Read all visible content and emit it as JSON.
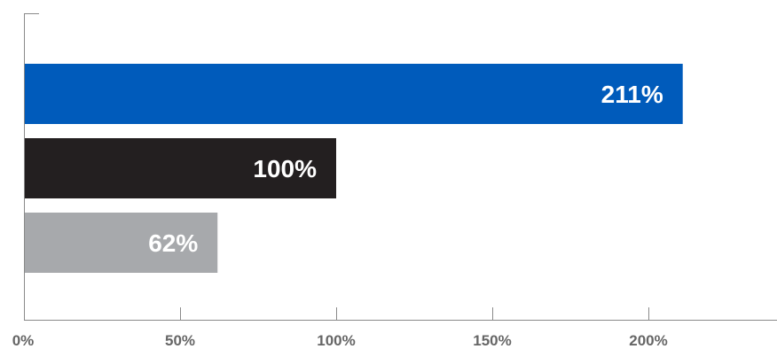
{
  "chart_data": {
    "type": "bar",
    "orientation": "horizontal",
    "values": [
      211,
      100,
      62
    ],
    "value_labels": [
      "211%",
      "100%",
      "62%"
    ],
    "colors": [
      "#005bbb",
      "#231f20",
      "#a7a9ac"
    ],
    "x_ticks": [
      0,
      50,
      100,
      150,
      200
    ],
    "x_tick_labels": [
      "0%",
      "50%",
      "100%",
      "150%",
      "200%"
    ],
    "xlim": [
      0,
      240
    ],
    "grid": false,
    "legend": "none"
  }
}
